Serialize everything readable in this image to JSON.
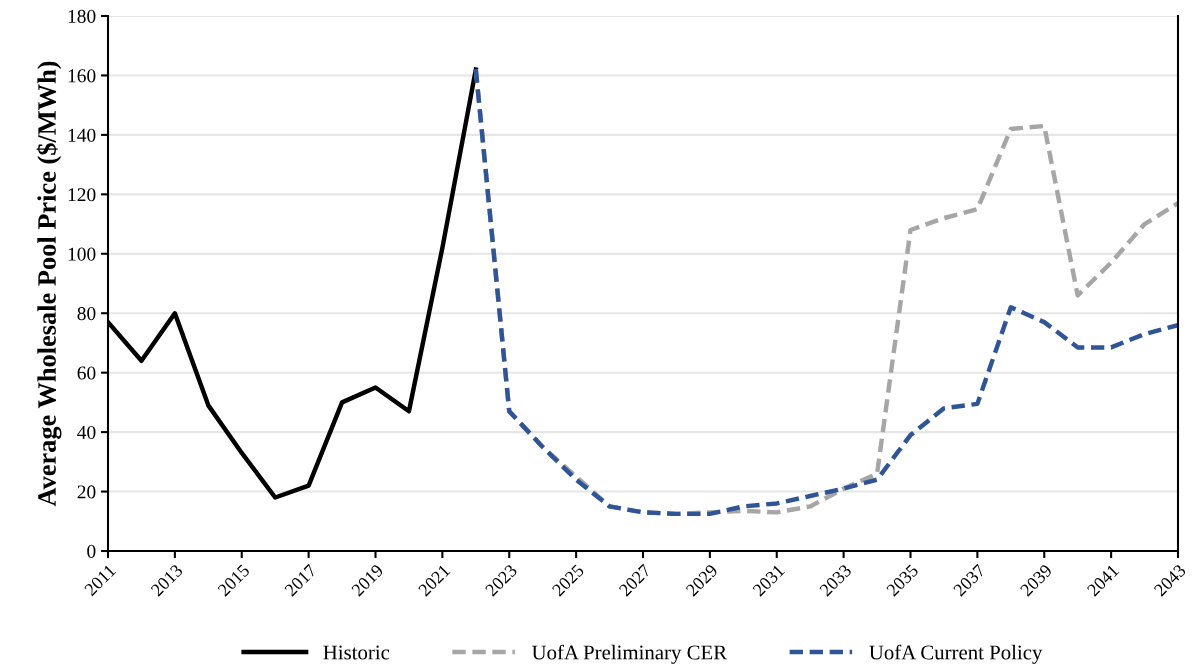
{
  "chart_data": {
    "type": "line",
    "ylabel": "Average Wholesale Pool Price ($/MWh)",
    "xlim": [
      2011,
      2043
    ],
    "xticks": [
      2011,
      2013,
      2015,
      2017,
      2019,
      2021,
      2023,
      2025,
      2027,
      2029,
      2031,
      2033,
      2035,
      2037,
      2039,
      2041,
      2043
    ],
    "ylim": [
      0,
      180
    ],
    "yticks": [
      0,
      20,
      40,
      60,
      80,
      100,
      120,
      140,
      160,
      180
    ],
    "grid": "y",
    "legend": "bottom",
    "series": [
      {
        "name": "Historic",
        "color": "#000000",
        "line_style": "solid",
        "x": [
          2011,
          2012,
          2013,
          2014,
          2015,
          2016,
          2017,
          2018,
          2019,
          2020,
          2021,
          2022
        ],
        "values": [
          77,
          64,
          80,
          49,
          33,
          18,
          22,
          50,
          55,
          47,
          102,
          162
        ]
      },
      {
        "name": "UofA Preliminary CER",
        "color": "#a6a6a6",
        "line_style": "dashed",
        "x": [
          2022,
          2023,
          2024,
          2025,
          2026,
          2027,
          2028,
          2029,
          2030,
          2031,
          2032,
          2033,
          2034,
          2035,
          2036,
          2037,
          2038,
          2039,
          2040,
          2041,
          2042,
          2043
        ],
        "values": [
          162,
          47,
          35,
          25,
          15,
          13,
          12.5,
          13,
          13.5,
          13,
          15,
          21,
          26,
          108,
          112,
          115,
          142,
          143,
          86,
          97,
          110,
          117
        ]
      },
      {
        "name": "UofA Current Policy",
        "color": "#2f5597",
        "line_style": "dashed",
        "x": [
          2022,
          2023,
          2024,
          2025,
          2026,
          2027,
          2028,
          2029,
          2030,
          2031,
          2032,
          2033,
          2034,
          2035,
          2036,
          2037,
          2038,
          2039,
          2040,
          2041,
          2042,
          2043
        ],
        "values": [
          162,
          47,
          35,
          24,
          15,
          13,
          12.5,
          12.5,
          15,
          16,
          18.5,
          21,
          24,
          39,
          48,
          49.5,
          82,
          77,
          68.5,
          68.5,
          73,
          76
        ]
      }
    ]
  }
}
